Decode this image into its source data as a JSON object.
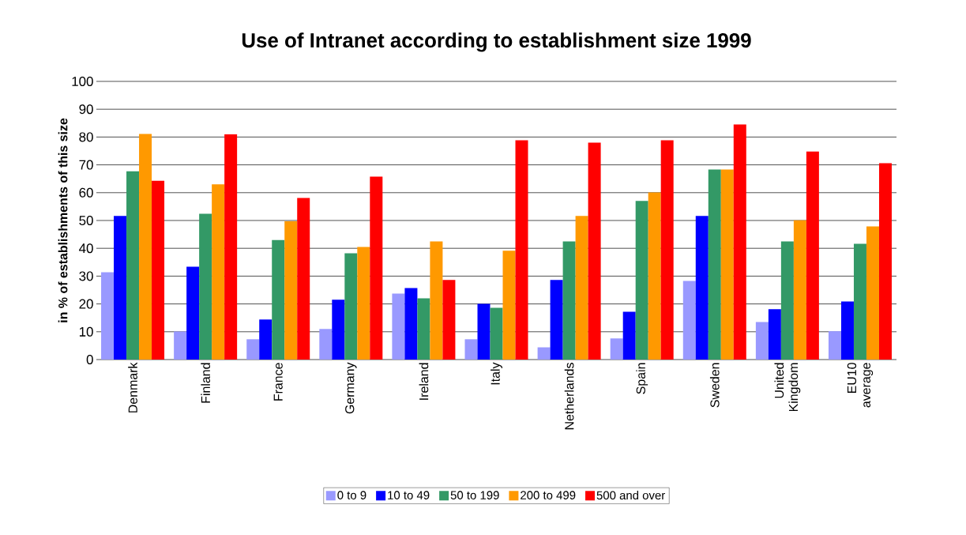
{
  "chart_data": {
    "type": "bar",
    "title": "Use of Intranet according to establishment size 1999",
    "ylabel": "in % of establishments of this size",
    "categories": [
      "Denmark",
      "Finland",
      "France",
      "Germany",
      "Ireland",
      "Italy",
      "Netherlands",
      "Spain",
      "Sweden",
      "United Kingdom",
      "EU10 average"
    ],
    "series": [
      {
        "name": "0 to 9",
        "color": "#9999ff",
        "values": [
          31.4,
          10.1,
          7.3,
          11.0,
          23.7,
          7.3,
          4.4,
          7.6,
          28.3,
          13.5,
          10.2
        ]
      },
      {
        "name": "10 to 49",
        "color": "#0000ff",
        "values": [
          51.6,
          33.4,
          14.4,
          21.5,
          25.7,
          20.0,
          28.6,
          17.2,
          51.6,
          18.1,
          20.9
        ]
      },
      {
        "name": "50 to 199",
        "color": "#339966",
        "values": [
          67.7,
          52.4,
          43.0,
          38.2,
          22.0,
          18.6,
          42.5,
          57.0,
          68.3,
          42.5,
          41.6
        ]
      },
      {
        "name": "200 to 499",
        "color": "#ff9900",
        "values": [
          81.1,
          63.0,
          49.7,
          40.5,
          42.5,
          39.1,
          51.6,
          60.1,
          68.3,
          50.1,
          47.9
        ]
      },
      {
        "name": "500 and over",
        "color": "#ff0000",
        "values": [
          64.3,
          81.0,
          58.1,
          65.8,
          28.6,
          78.8,
          78.0,
          78.8,
          84.5,
          74.8,
          70.6
        ]
      }
    ],
    "ylim": [
      0,
      100
    ],
    "yticks": [
      0,
      10,
      20,
      30,
      40,
      50,
      60,
      70,
      80,
      90,
      100
    ],
    "grid": "y",
    "legend": "bottom"
  }
}
